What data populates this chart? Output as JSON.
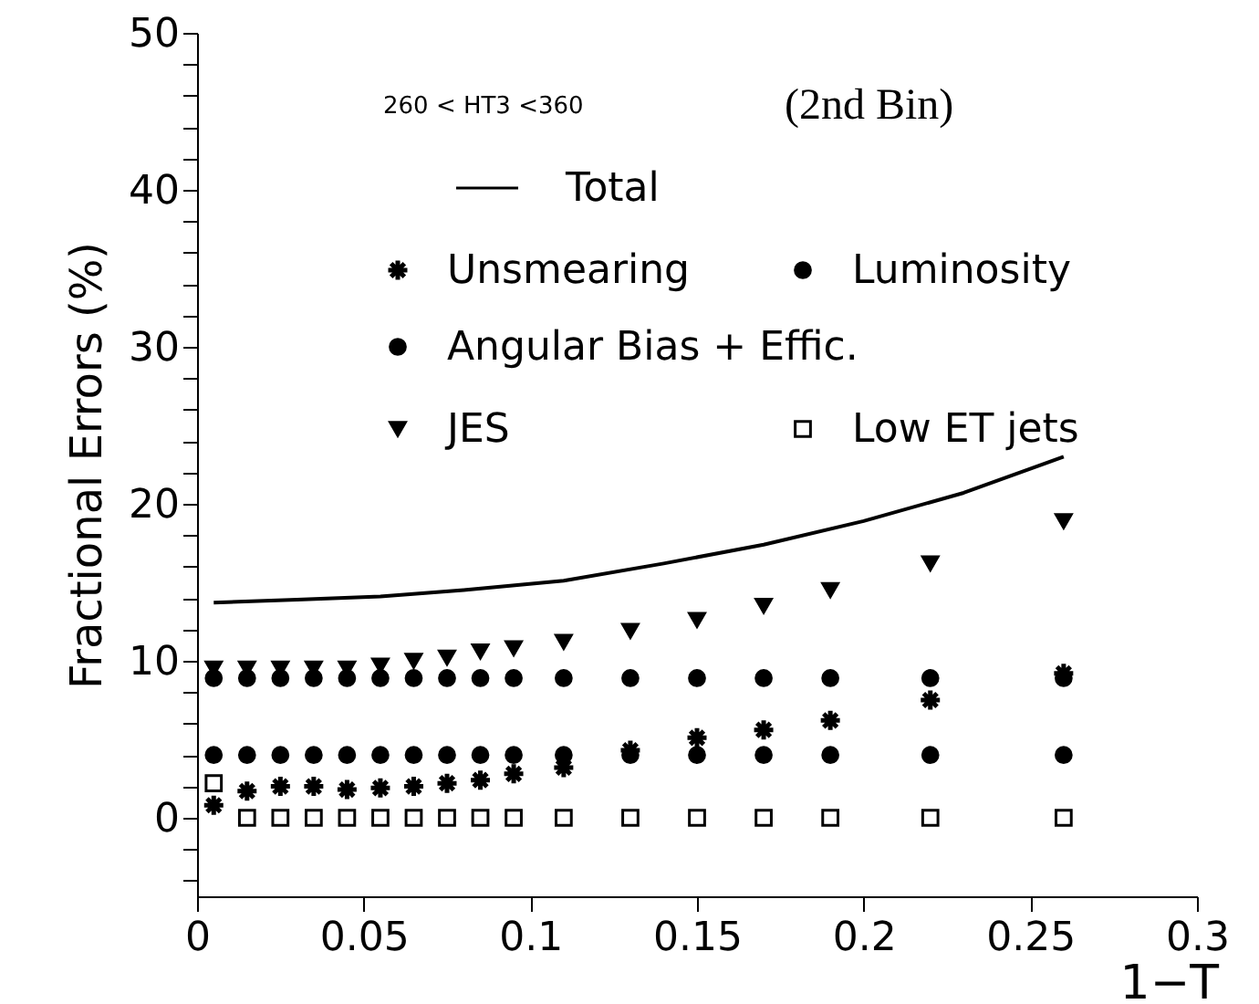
{
  "chart_data": {
    "type": "scatter",
    "xlabel": "1−T",
    "ylabel": "Fractional Errors (%)",
    "annotations": [
      "260 < HT3 <360",
      "(2nd Bin)"
    ],
    "x": [
      0.005,
      0.015,
      0.025,
      0.035,
      0.045,
      0.055,
      0.065,
      0.075,
      0.085,
      0.095,
      0.11,
      0.13,
      0.15,
      0.17,
      0.19,
      0.22,
      0.26
    ],
    "series": [
      {
        "name": "Total",
        "type": "line",
        "color": "#000000",
        "marker": "none",
        "x": [
          0.005,
          0.03,
          0.055,
          0.08,
          0.11,
          0.14,
          0.17,
          0.2,
          0.23,
          0.26
        ],
        "values": [
          13.7,
          13.9,
          14.1,
          14.5,
          15.1,
          16.2,
          17.4,
          18.9,
          20.7,
          23.0
        ]
      },
      {
        "name": "Unsmearing",
        "color": "#000000",
        "marker": "cross",
        "values": [
          0.8,
          1.7,
          2.0,
          2.0,
          1.8,
          1.9,
          2.0,
          2.2,
          2.4,
          2.8,
          3.2,
          4.3,
          5.1,
          5.6,
          6.2,
          7.5,
          9.2
        ]
      },
      {
        "name": "Luminosity",
        "color": "#000000",
        "marker": "circle",
        "values": [
          8.9,
          8.9,
          8.9,
          8.9,
          8.9,
          8.9,
          8.9,
          8.9,
          8.9,
          8.9,
          8.9,
          8.9,
          8.9,
          8.9,
          8.9,
          8.9,
          8.9
        ]
      },
      {
        "name": "Angular Bias + Effic.",
        "color": "#000000",
        "marker": "circle",
        "values": [
          4,
          4,
          4,
          4,
          4,
          4,
          4,
          4,
          4,
          4,
          4,
          4,
          4,
          4,
          4,
          4,
          4
        ]
      },
      {
        "name": "JES",
        "color": "#000000",
        "marker": "triangle",
        "values": [
          9.5,
          9.5,
          9.5,
          9.5,
          9.5,
          9.7,
          10.0,
          10.2,
          10.6,
          10.8,
          11.2,
          11.9,
          12.6,
          13.5,
          14.5,
          16.2,
          18.9
        ]
      },
      {
        "name": "Low ET jets",
        "color": "#000000",
        "marker": "square",
        "values": [
          2.2,
          0,
          0,
          0,
          0,
          0,
          0,
          0,
          0,
          0,
          0,
          0,
          0,
          0,
          0,
          0,
          0
        ]
      }
    ],
    "xlim": [
      0,
      0.3
    ],
    "xticks": [
      0,
      0.05,
      0.1,
      0.15,
      0.2,
      0.25,
      0.3
    ],
    "ylim": [
      -5,
      50
    ],
    "yticks": [
      {
        "value": -4,
        "label": null
      },
      {
        "value": -2,
        "label": null
      },
      0,
      {
        "value": 2,
        "label": null
      },
      {
        "value": 4,
        "label": null
      },
      {
        "value": 6,
        "label": null
      },
      {
        "value": 8,
        "label": null
      },
      10,
      {
        "value": 12,
        "label": null
      },
      {
        "value": 14,
        "label": null
      },
      {
        "value": 16,
        "label": null
      },
      {
        "value": 18,
        "label": null
      },
      20,
      {
        "value": 22,
        "label": null
      },
      {
        "value": 24,
        "label": null
      },
      {
        "value": 26,
        "label": null
      },
      {
        "value": 28,
        "label": null
      },
      30,
      {
        "value": 32,
        "label": null
      },
      {
        "value": 34,
        "label": null
      },
      {
        "value": 36,
        "label": null
      },
      {
        "value": 38,
        "label": null
      },
      40,
      {
        "value": 42,
        "label": null
      },
      {
        "value": 44,
        "label": null
      },
      {
        "value": 46,
        "label": null
      },
      {
        "value": 48,
        "label": null
      },
      50
    ],
    "grid": false,
    "legend": "top"
  }
}
